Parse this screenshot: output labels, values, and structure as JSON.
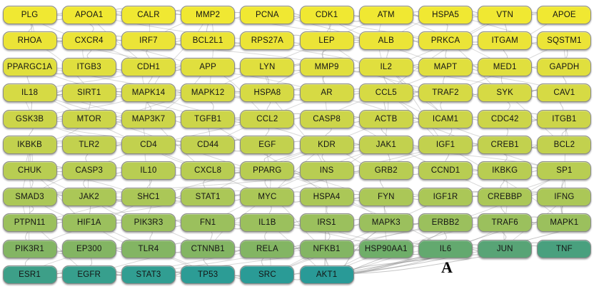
{
  "figure": {
    "panel_label": "A",
    "background": "#ffffff",
    "edge_color": "#8e8e8e",
    "node_border": "#8a8a8a",
    "text_color": "#141414",
    "rows": [
      {
        "color": "#f0e832",
        "nodes": [
          "PLG",
          "APOA1",
          "CALR",
          "MMP2",
          "PCNA",
          "CDK1",
          "ATM",
          "HSPA5",
          "VTN",
          "APOE"
        ]
      },
      {
        "color": "#ebe437",
        "nodes": [
          "RHOA",
          "CXCR4",
          "IRF7",
          "BCL2L1",
          "RPS27A",
          "LEP",
          "ALB",
          "PRKCA",
          "ITGAM",
          "SQSTM1"
        ]
      },
      {
        "color": "#e0df3e",
        "nodes": [
          "PPARGC1A",
          "ITGB3",
          "CDH1",
          "APP",
          "LYN",
          "MMP9",
          "IL2",
          "MAPT",
          "MED1",
          "GAPDH"
        ]
      },
      {
        "color": "#d6da44",
        "nodes": [
          "IL18",
          "SIRT1",
          "MAPK14",
          "MAPK12",
          "HSPA8",
          "AR",
          "CCL5",
          "TRAF2",
          "SYK",
          "CAV1"
        ]
      },
      {
        "color": "#ccd549",
        "nodes": [
          "GSK3B",
          "MTOR",
          "MAP3K7",
          "TGFB1",
          "CCL2",
          "CASP8",
          "ACTB",
          "ICAM1",
          "CDC42",
          "ITGB1"
        ]
      },
      {
        "color": "#c2d14e",
        "nodes": [
          "IKBKB",
          "TLR2",
          "CD4",
          "CD44",
          "EGF",
          "KDR",
          "JAK1",
          "IGF1",
          "CREB1",
          "BCL2"
        ]
      },
      {
        "color": "#b8cd52",
        "nodes": [
          "CHUK",
          "CASP3",
          "IL10",
          "CXCL8",
          "PPARG",
          "INS",
          "GRB2",
          "CCND1",
          "IKBKG",
          "SP1"
        ]
      },
      {
        "color": "#abc757",
        "nodes": [
          "SMAD3",
          "JAK2",
          "SHC1",
          "STAT1",
          "MYC",
          "HSPA4",
          "FYN",
          "IGF1R",
          "CREBBP",
          "IFNG"
        ]
      },
      {
        "color": "#9bc05d",
        "nodes": [
          "PTPN11",
          "HIF1A",
          "PIK3R3",
          "FN1",
          "IL1B",
          "IRS1",
          "MAPK3",
          "ERBB2",
          "TRAF6",
          "MAPK1"
        ]
      },
      {
        "color": "#83b563",
        "nodes": [
          "PIK3R1",
          "EP300",
          "TLR4",
          "CTNNB1",
          "RELA",
          "NFKB1",
          "HSP90AA1",
          "IL6",
          "JUN",
          "TNF"
        ],
        "overrides": {
          "6": "#6fae69",
          "7": "#63a96f",
          "8": "#58a476",
          "9": "#49a07e"
        }
      },
      {
        "color": "#2f9d92",
        "nodes": [
          "ESR1",
          "EGFR",
          "STAT3",
          "TP53",
          "SRC",
          "AKT1"
        ],
        "overrides": {
          "0": "#3d9f88",
          "1": "#379f8d",
          "2": "#319e92",
          "3": "#2c9c95",
          "4": "#2a9b96",
          "5": "#299a97"
        }
      }
    ]
  }
}
